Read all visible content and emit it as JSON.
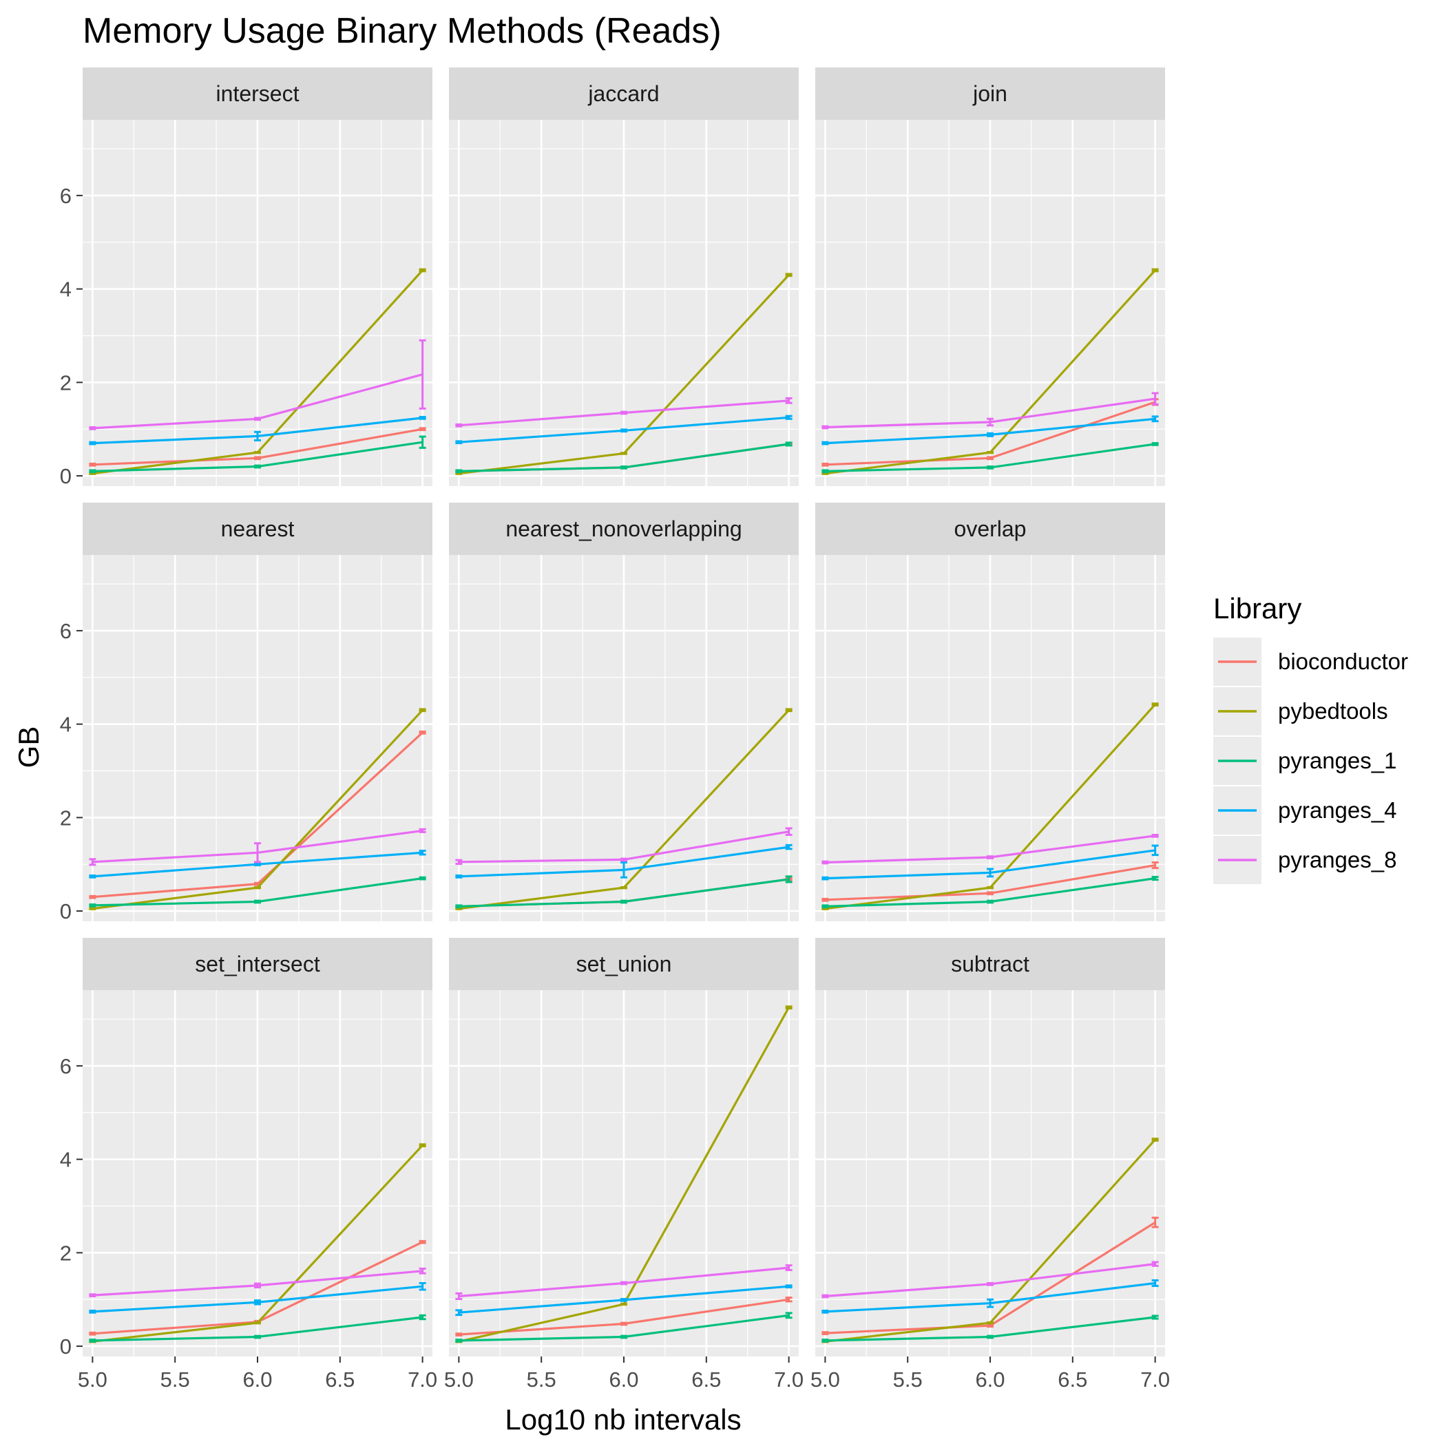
{
  "chart_data": {
    "type": "line",
    "title": "Memory Usage Binary Methods (Reads)",
    "xlabel": "Log10 nb intervals",
    "ylabel": "GB",
    "xlim": [
      4.94,
      7.06
    ],
    "ylim": [
      -0.22,
      7.62
    ],
    "x_ticks": [
      "5.0",
      "5.5",
      "6.0",
      "6.5",
      "7.0"
    ],
    "y_ticks": [
      "0",
      "2",
      "4",
      "6"
    ],
    "grid": true,
    "legend": {
      "title": "Library",
      "position": "right",
      "entries": [
        "bioconductor",
        "pybedtools",
        "pyranges_1",
        "pyranges_4",
        "pyranges_8"
      ]
    },
    "colors": {
      "bioconductor": "#F8766D",
      "pybedtools": "#A3A500",
      "pyranges_1": "#00BF7D",
      "pyranges_4": "#00B0F6",
      "pyranges_8": "#E76BF3"
    },
    "x": [
      5.0,
      6.0,
      7.0
    ],
    "panels": [
      {
        "name": "intersect",
        "series": [
          {
            "name": "bioconductor",
            "values": [
              0.24,
              0.38,
              1.0
            ],
            "errors": [
              0.02,
              0.02,
              0.02
            ]
          },
          {
            "name": "pybedtools",
            "values": [
              0.05,
              0.5,
              4.4
            ],
            "errors": [
              0.01,
              0.01,
              0.02
            ]
          },
          {
            "name": "pyranges_1",
            "values": [
              0.1,
              0.2,
              0.72
            ],
            "errors": [
              0.02,
              0.02,
              0.12
            ]
          },
          {
            "name": "pyranges_4",
            "values": [
              0.7,
              0.85,
              1.24
            ],
            "errors": [
              0.02,
              0.09,
              0.02
            ]
          },
          {
            "name": "pyranges_8",
            "values": [
              1.02,
              1.22,
              2.17
            ],
            "errors": [
              0.02,
              0.02,
              0.73
            ]
          }
        ]
      },
      {
        "name": "jaccard",
        "series": [
          {
            "name": "bioconductor",
            "values": [
              0.1,
              0.18,
              0.68
            ],
            "errors": [
              0.01,
              0.01,
              0.02
            ]
          },
          {
            "name": "pybedtools",
            "values": [
              0.05,
              0.48,
              4.3
            ],
            "errors": [
              0.01,
              0.01,
              0.02
            ]
          },
          {
            "name": "pyranges_1",
            "values": [
              0.1,
              0.18,
              0.68
            ],
            "errors": [
              0.02,
              0.02,
              0.03
            ]
          },
          {
            "name": "pyranges_4",
            "values": [
              0.72,
              0.97,
              1.25
            ],
            "errors": [
              0.02,
              0.02,
              0.03
            ]
          },
          {
            "name": "pyranges_8",
            "values": [
              1.08,
              1.35,
              1.61
            ],
            "errors": [
              0.02,
              0.02,
              0.05
            ]
          }
        ]
      },
      {
        "name": "join",
        "series": [
          {
            "name": "bioconductor",
            "values": [
              0.24,
              0.38,
              1.58
            ],
            "errors": [
              0.02,
              0.02,
              0.06
            ]
          },
          {
            "name": "pybedtools",
            "values": [
              0.05,
              0.5,
              4.4
            ],
            "errors": [
              0.01,
              0.01,
              0.02
            ]
          },
          {
            "name": "pyranges_1",
            "values": [
              0.1,
              0.18,
              0.68
            ],
            "errors": [
              0.02,
              0.02,
              0.02
            ]
          },
          {
            "name": "pyranges_4",
            "values": [
              0.7,
              0.88,
              1.22
            ],
            "errors": [
              0.02,
              0.03,
              0.05
            ]
          },
          {
            "name": "pyranges_8",
            "values": [
              1.04,
              1.15,
              1.65
            ],
            "errors": [
              0.02,
              0.07,
              0.12
            ]
          }
        ]
      },
      {
        "name": "nearest",
        "series": [
          {
            "name": "bioconductor",
            "values": [
              0.3,
              0.58,
              3.82
            ],
            "errors": [
              0.02,
              0.02,
              0.02
            ]
          },
          {
            "name": "pybedtools",
            "values": [
              0.05,
              0.5,
              4.3
            ],
            "errors": [
              0.01,
              0.01,
              0.02
            ]
          },
          {
            "name": "pyranges_1",
            "values": [
              0.12,
              0.2,
              0.7
            ],
            "errors": [
              0.02,
              0.02,
              0.02
            ]
          },
          {
            "name": "pyranges_4",
            "values": [
              0.74,
              1.0,
              1.25
            ],
            "errors": [
              0.02,
              0.02,
              0.04
            ]
          },
          {
            "name": "pyranges_8",
            "values": [
              1.05,
              1.25,
              1.72
            ],
            "errors": [
              0.06,
              0.2,
              0.03
            ]
          }
        ]
      },
      {
        "name": "nearest_nonoverlapping",
        "series": [
          {
            "name": "bioconductor",
            "values": [
              0.1,
              0.2,
              0.68
            ],
            "errors": [
              0.01,
              0.01,
              0.02
            ]
          },
          {
            "name": "pybedtools",
            "values": [
              0.05,
              0.5,
              4.3
            ],
            "errors": [
              0.01,
              0.01,
              0.02
            ]
          },
          {
            "name": "pyranges_1",
            "values": [
              0.1,
              0.2,
              0.68
            ],
            "errors": [
              0.02,
              0.02,
              0.06
            ]
          },
          {
            "name": "pyranges_4",
            "values": [
              0.74,
              0.88,
              1.37
            ],
            "errors": [
              0.02,
              0.16,
              0.04
            ]
          },
          {
            "name": "pyranges_8",
            "values": [
              1.05,
              1.1,
              1.7
            ],
            "errors": [
              0.04,
              0.02,
              0.07
            ]
          }
        ]
      },
      {
        "name": "overlap",
        "series": [
          {
            "name": "bioconductor",
            "values": [
              0.24,
              0.38,
              0.98
            ],
            "errors": [
              0.02,
              0.02,
              0.06
            ]
          },
          {
            "name": "pybedtools",
            "values": [
              0.05,
              0.5,
              4.42
            ],
            "errors": [
              0.01,
              0.01,
              0.02
            ]
          },
          {
            "name": "pyranges_1",
            "values": [
              0.1,
              0.2,
              0.7
            ],
            "errors": [
              0.02,
              0.02,
              0.03
            ]
          },
          {
            "name": "pyranges_4",
            "values": [
              0.7,
              0.82,
              1.3
            ],
            "errors": [
              0.02,
              0.08,
              0.1
            ]
          },
          {
            "name": "pyranges_8",
            "values": [
              1.04,
              1.15,
              1.61
            ],
            "errors": [
              0.02,
              0.02,
              0.02
            ]
          }
        ]
      },
      {
        "name": "set_intersect",
        "series": [
          {
            "name": "bioconductor",
            "values": [
              0.27,
              0.52,
              2.23
            ],
            "errors": [
              0.02,
              0.02,
              0.02
            ]
          },
          {
            "name": "pybedtools",
            "values": [
              0.1,
              0.5,
              4.3
            ],
            "errors": [
              0.01,
              0.01,
              0.02
            ]
          },
          {
            "name": "pyranges_1",
            "values": [
              0.12,
              0.2,
              0.62
            ],
            "errors": [
              0.02,
              0.02,
              0.04
            ]
          },
          {
            "name": "pyranges_4",
            "values": [
              0.74,
              0.94,
              1.28
            ],
            "errors": [
              0.02,
              0.04,
              0.07
            ]
          },
          {
            "name": "pyranges_8",
            "values": [
              1.09,
              1.3,
              1.61
            ],
            "errors": [
              0.02,
              0.04,
              0.05
            ]
          }
        ]
      },
      {
        "name": "set_union",
        "series": [
          {
            "name": "bioconductor",
            "values": [
              0.25,
              0.48,
              1.0
            ],
            "errors": [
              0.02,
              0.02,
              0.04
            ]
          },
          {
            "name": "pybedtools",
            "values": [
              0.1,
              0.9,
              7.25
            ],
            "errors": [
              0.01,
              0.01,
              0.02
            ]
          },
          {
            "name": "pyranges_1",
            "values": [
              0.12,
              0.2,
              0.66
            ],
            "errors": [
              0.02,
              0.02,
              0.05
            ]
          },
          {
            "name": "pyranges_4",
            "values": [
              0.72,
              0.99,
              1.28
            ],
            "errors": [
              0.05,
              0.02,
              0.02
            ]
          },
          {
            "name": "pyranges_8",
            "values": [
              1.07,
              1.35,
              1.68
            ],
            "errors": [
              0.06,
              0.02,
              0.05
            ]
          }
        ]
      },
      {
        "name": "subtract",
        "series": [
          {
            "name": "bioconductor",
            "values": [
              0.28,
              0.44,
              2.65
            ],
            "errors": [
              0.02,
              0.02,
              0.1
            ]
          },
          {
            "name": "pybedtools",
            "values": [
              0.1,
              0.5,
              4.42
            ],
            "errors": [
              0.01,
              0.01,
              0.02
            ]
          },
          {
            "name": "pyranges_1",
            "values": [
              0.12,
              0.2,
              0.62
            ],
            "errors": [
              0.02,
              0.02,
              0.03
            ]
          },
          {
            "name": "pyranges_4",
            "values": [
              0.74,
              0.92,
              1.35
            ],
            "errors": [
              0.02,
              0.08,
              0.06
            ]
          },
          {
            "name": "pyranges_8",
            "values": [
              1.07,
              1.33,
              1.76
            ],
            "errors": [
              0.02,
              0.02,
              0.04
            ]
          }
        ]
      }
    ]
  }
}
